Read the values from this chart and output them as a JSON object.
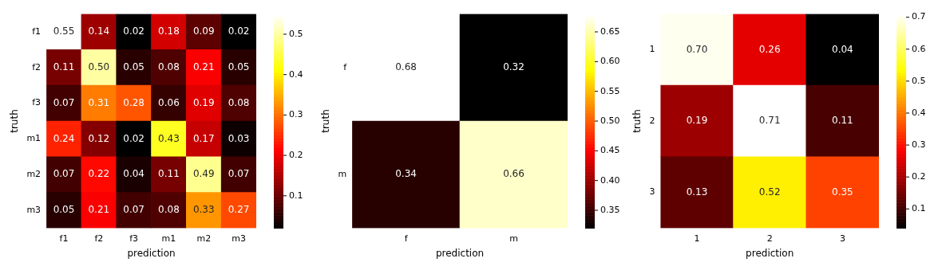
{
  "chart_data": [
    {
      "type": "heatmap",
      "xlabel": "prediction",
      "ylabel": "truth",
      "categories": [
        "f1",
        "f2",
        "f3",
        "m1",
        "m2",
        "m3"
      ],
      "y_categories": [
        "f1",
        "f2",
        "f3",
        "m1",
        "m2",
        "m3"
      ],
      "cells": [
        [
          0.55,
          0.14,
          0.02,
          0.18,
          0.09,
          0.02
        ],
        [
          0.11,
          0.5,
          0.05,
          0.08,
          0.21,
          0.05
        ],
        [
          0.07,
          0.31,
          0.28,
          0.06,
          0.19,
          0.08
        ],
        [
          0.24,
          0.12,
          0.02,
          0.43,
          0.17,
          0.03
        ],
        [
          0.07,
          0.22,
          0.04,
          0.11,
          0.49,
          0.07
        ],
        [
          0.05,
          0.21,
          0.07,
          0.08,
          0.33,
          0.27
        ]
      ],
      "cell_labels": [
        [
          "0.55",
          "0.14",
          "0.02",
          "0.18",
          "0.09",
          "0.02"
        ],
        [
          "0.11",
          "0.50",
          "0.05",
          "0.08",
          "0.21",
          "0.05"
        ],
        [
          "0.07",
          "0.31",
          "0.28",
          "0.06",
          "0.19",
          "0.08"
        ],
        [
          "0.24",
          "0.12",
          "0.02",
          "0.43",
          "0.17",
          "0.03"
        ],
        [
          "0.07",
          "0.22",
          "0.04",
          "0.11",
          "0.49",
          "0.07"
        ],
        [
          "0.05",
          "0.21",
          "0.07",
          "0.08",
          "0.33",
          "0.27"
        ]
      ],
      "clim": [
        0.02,
        0.55
      ],
      "cticks": [
        0.1,
        0.2,
        0.3,
        0.4,
        0.5
      ]
    },
    {
      "type": "heatmap",
      "xlabel": "prediction",
      "ylabel": "truth",
      "categories": [
        "f",
        "m"
      ],
      "y_categories": [
        "f",
        "m"
      ],
      "cells": [
        [
          0.68,
          0.32
        ],
        [
          0.34,
          0.66
        ]
      ],
      "cell_labels": [
        [
          "0.68",
          "0.32"
        ],
        [
          "0.34",
          "0.66"
        ]
      ],
      "clim": [
        0.32,
        0.68
      ],
      "cticks": [
        0.35,
        {
          "value": 0.4,
          "label": "0.40"
        },
        0.45,
        {
          "value": 0.5,
          "label": "0.50"
        },
        0.55,
        {
          "value": 0.6,
          "label": "0.60"
        },
        0.65
      ]
    },
    {
      "type": "heatmap",
      "xlabel": "prediction",
      "ylabel": "truth",
      "categories": [
        "1",
        "2",
        "3"
      ],
      "y_categories": [
        "1",
        "2",
        "3"
      ],
      "cells": [
        [
          0.7,
          0.26,
          0.04
        ],
        [
          0.19,
          0.71,
          0.11
        ],
        [
          0.13,
          0.52,
          0.35
        ]
      ],
      "cell_labels": [
        [
          "0.70",
          "0.26",
          "0.04"
        ],
        [
          "0.19",
          "0.71",
          "0.11"
        ],
        [
          "0.13",
          "0.52",
          "0.35"
        ]
      ],
      "clim": [
        0.04,
        0.71
      ],
      "cticks": [
        0.1,
        0.2,
        0.3,
        0.4,
        0.5,
        0.6,
        0.7
      ]
    }
  ]
}
